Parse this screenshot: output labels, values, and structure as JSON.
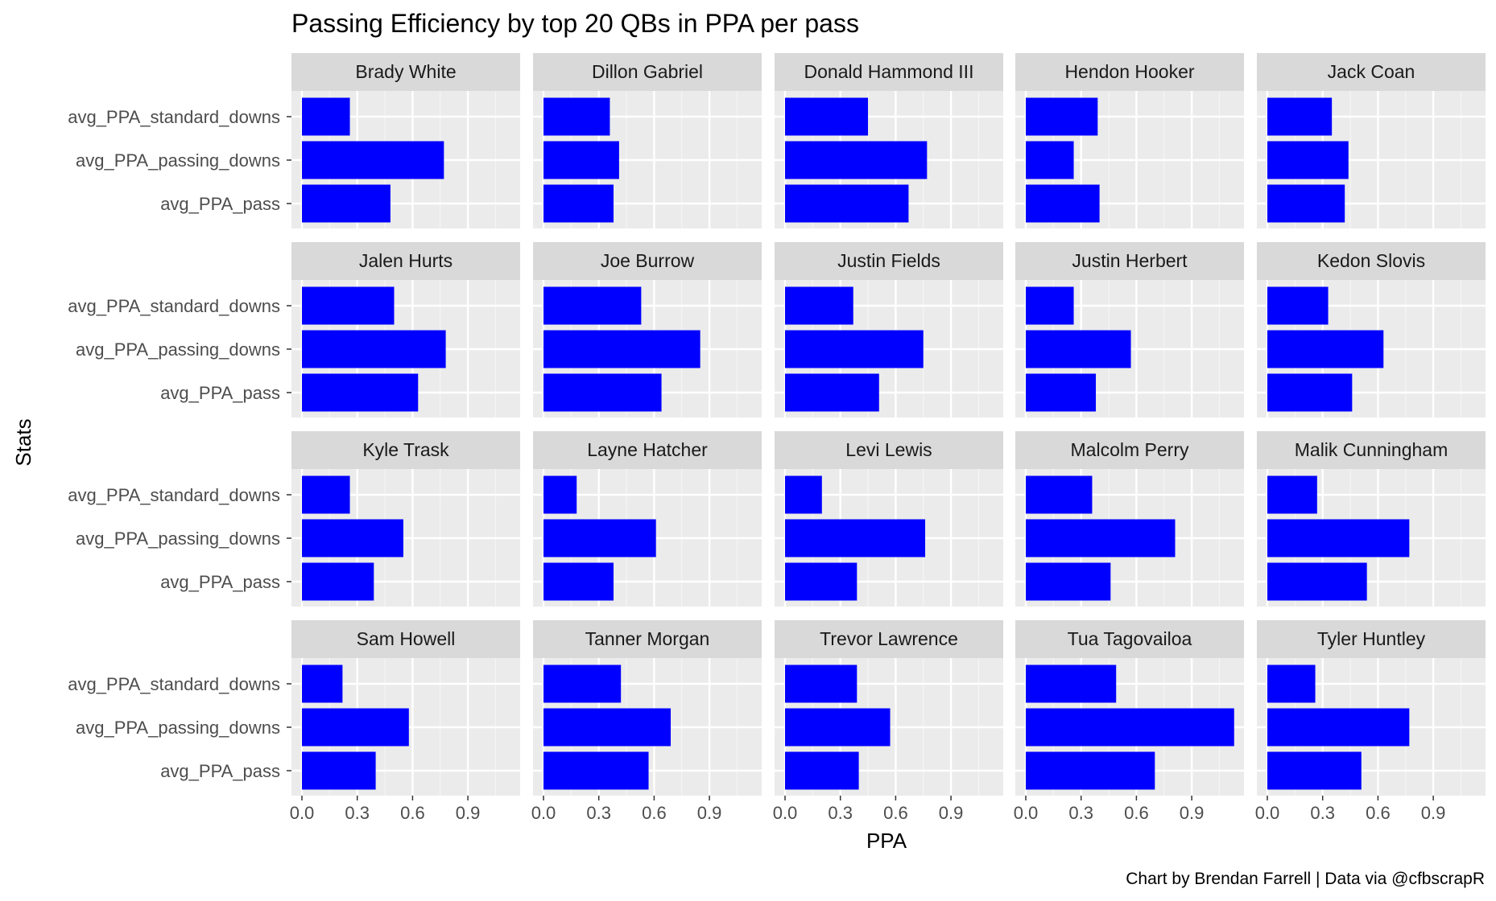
{
  "chart_data": {
    "type": "bar",
    "orientation": "horizontal",
    "facet": "by quarterback (4 rows x 5 columns)",
    "title": "Passing Efficiency by top 20 QBs in PPA per pass",
    "xlabel": "PPA",
    "ylabel": "Stats",
    "caption": "Chart by Brendan Farrell | Data via @cfbscrapR",
    "categories": [
      "avg_PPA_standard_downs",
      "avg_PPA_passing_downs",
      "avg_PPA_pass"
    ],
    "x_ticks": [
      "0.0",
      "0.3",
      "0.6",
      "0.9"
    ],
    "xlim": [
      -0.057,
      1.185
    ],
    "grid": true,
    "bar_color": "#0000FF",
    "panel_bg": "#EBEBEB",
    "strip_bg": "#D9D9D9",
    "facets": [
      {
        "name": "Brady White",
        "values": [
          0.26,
          0.77,
          0.48
        ]
      },
      {
        "name": "Dillon Gabriel",
        "values": [
          0.36,
          0.41,
          0.38
        ]
      },
      {
        "name": "Donald Hammond III",
        "values": [
          0.45,
          0.77,
          0.67
        ]
      },
      {
        "name": "Hendon Hooker",
        "values": [
          0.39,
          0.26,
          0.4
        ]
      },
      {
        "name": "Jack Coan",
        "values": [
          0.35,
          0.44,
          0.42
        ]
      },
      {
        "name": "Jalen Hurts",
        "values": [
          0.5,
          0.78,
          0.63
        ]
      },
      {
        "name": "Joe Burrow",
        "values": [
          0.53,
          0.85,
          0.64
        ]
      },
      {
        "name": "Justin Fields",
        "values": [
          0.37,
          0.75,
          0.51
        ]
      },
      {
        "name": "Justin Herbert",
        "values": [
          0.26,
          0.57,
          0.38
        ]
      },
      {
        "name": "Kedon Slovis",
        "values": [
          0.33,
          0.63,
          0.46
        ]
      },
      {
        "name": "Kyle Trask",
        "values": [
          0.26,
          0.55,
          0.39
        ]
      },
      {
        "name": "Layne Hatcher",
        "values": [
          0.18,
          0.61,
          0.38
        ]
      },
      {
        "name": "Levi Lewis",
        "values": [
          0.2,
          0.76,
          0.39
        ]
      },
      {
        "name": "Malcolm Perry",
        "values": [
          0.36,
          0.81,
          0.46
        ]
      },
      {
        "name": "Malik Cunningham",
        "values": [
          0.27,
          0.77,
          0.54
        ]
      },
      {
        "name": "Sam Howell",
        "values": [
          0.22,
          0.58,
          0.4
        ]
      },
      {
        "name": "Tanner Morgan",
        "values": [
          0.42,
          0.69,
          0.57
        ]
      },
      {
        "name": "Trevor Lawrence",
        "values": [
          0.39,
          0.57,
          0.4
        ]
      },
      {
        "name": "Tua Tagovailoa",
        "values": [
          0.49,
          1.13,
          0.7
        ]
      },
      {
        "name": "Tyler Huntley",
        "values": [
          0.26,
          0.77,
          0.51
        ]
      }
    ]
  }
}
